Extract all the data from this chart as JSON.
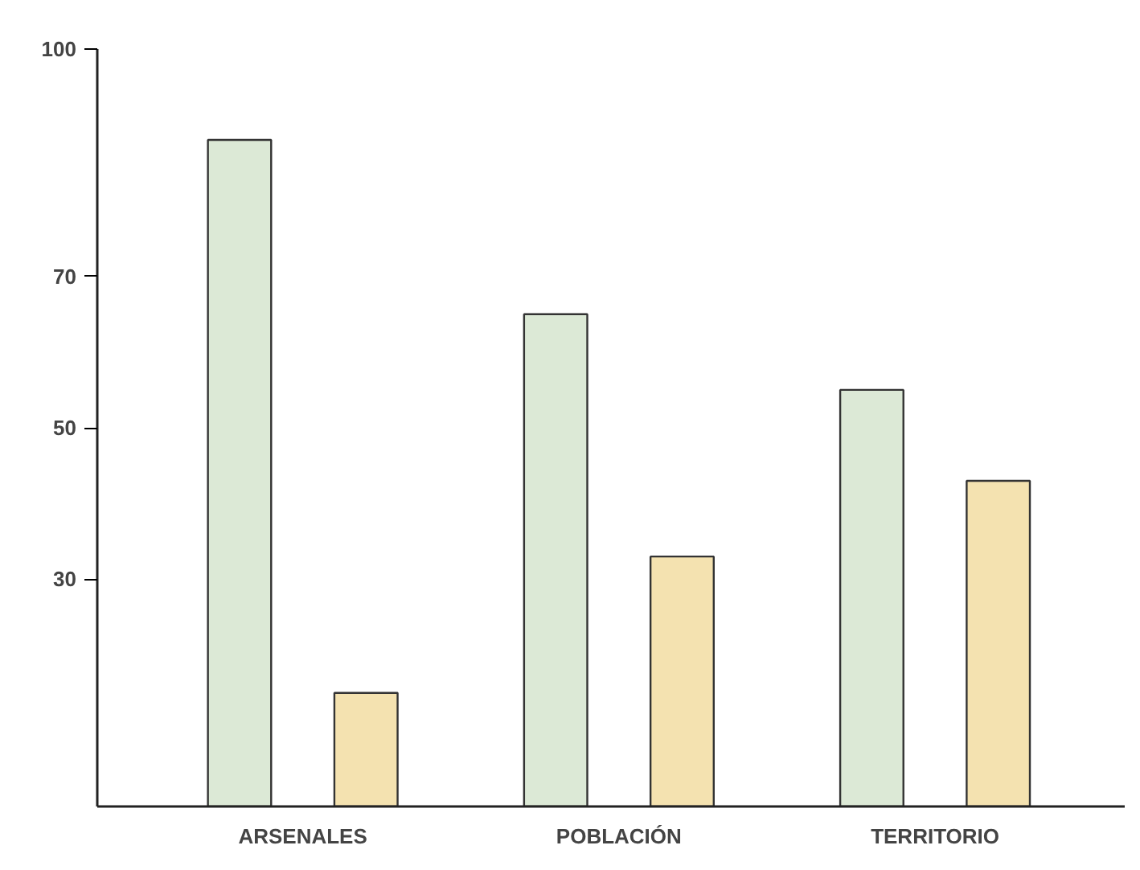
{
  "chart_data": {
    "type": "bar",
    "categories": [
      "ARSENALES",
      "POBLACIÓN",
      "TERRITORIO"
    ],
    "series": [
      {
        "color": "#dce9d6",
        "values": [
          88,
          65,
          55
        ]
      },
      {
        "color": "#f4e2b0",
        "values": [
          15,
          33,
          43
        ]
      }
    ],
    "ylim": [
      0,
      100
    ],
    "yticks": [
      30,
      50,
      70,
      100
    ],
    "grid": false
  }
}
